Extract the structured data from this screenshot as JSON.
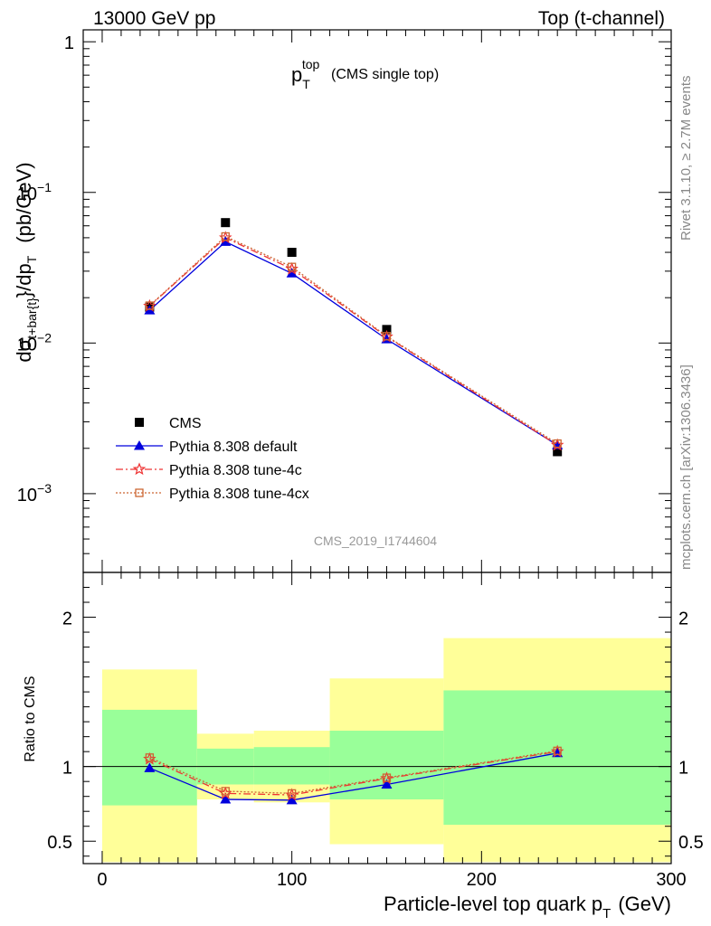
{
  "header": {
    "left": "13000 GeV pp",
    "right": "Top (t-channel)"
  },
  "title": {
    "main": "p",
    "main_sub": "T",
    "main_sup": "top",
    "note": "(CMS single top)"
  },
  "ylabel_top": {
    "prefix": "dσ",
    "sub": "t+bar{t}",
    "middle": "}/dp",
    "sub2": "T",
    "units": "(pb/GeV)"
  },
  "ylabel_bottom": "Ratio to CMS",
  "xlabel": {
    "main": "Particle-level top quark p",
    "sub": "T",
    "units": "(GeV)"
  },
  "side_text": {
    "rivet": "Rivet 3.1.10, ≥ 2.7M events",
    "mcplots": "mcplots.cern.ch [arXiv:1306.3436]"
  },
  "watermark": "CMS_2019_I1744604",
  "legend": [
    {
      "label": "CMS",
      "marker": "square",
      "color": "#000000"
    },
    {
      "label": "Pythia 8.308 default",
      "marker": "triangle",
      "color": "#0000dd"
    },
    {
      "label": "Pythia 8.308 tune-4c",
      "marker": "star",
      "color": "#ee3333"
    },
    {
      "label": "Pythia 8.308 tune-4cx",
      "marker": "open-square",
      "color": "#cc6633"
    }
  ],
  "chart_data": {
    "type": "scatter",
    "x_range": [
      -10,
      300
    ],
    "top_panel": {
      "y_scale": "log",
      "ylim": [
        0.0003,
        1.2
      ],
      "y_ticks": [
        {
          "v": 1,
          "base": "1",
          "exp": ""
        },
        {
          "v": 0.1,
          "base": "10",
          "exp": "−1"
        },
        {
          "v": 0.01,
          "base": "10",
          "exp": "−2"
        },
        {
          "v": 0.001,
          "base": "10",
          "exp": "−3"
        }
      ],
      "series": [
        {
          "name": "CMS",
          "x": [
            25,
            65,
            100,
            150,
            240
          ],
          "y": [
            0.0173,
            0.063,
            0.04,
            0.0123,
            0.0019
          ]
        },
        {
          "name": "Pythia 8.308 default",
          "x": [
            25,
            65,
            100,
            150,
            240
          ],
          "y": [
            0.0165,
            0.047,
            0.029,
            0.0106,
            0.0021
          ]
        },
        {
          "name": "Pythia 8.308 tune-4c",
          "x": [
            25,
            65,
            100,
            150,
            240
          ],
          "y": [
            0.0176,
            0.05,
            0.031,
            0.011,
            0.0021
          ]
        },
        {
          "name": "Pythia 8.308 tune-4cx",
          "x": [
            25,
            65,
            100,
            150,
            240
          ],
          "y": [
            0.0177,
            0.051,
            0.032,
            0.0111,
            0.00215
          ]
        }
      ]
    },
    "bottom_panel": {
      "ylim": [
        0.35,
        2.3
      ],
      "y_ticks": [
        0.5,
        1,
        2
      ],
      "bands": [
        {
          "x0": 0,
          "x1": 50,
          "inner": [
            0.74,
            1.38
          ],
          "outer": [
            0.36,
            1.65
          ]
        },
        {
          "x0": 50,
          "x1": 80,
          "inner": [
            0.88,
            1.12
          ],
          "outer": [
            0.78,
            1.22
          ]
        },
        {
          "x0": 80,
          "x1": 120,
          "inner": [
            0.88,
            1.13
          ],
          "outer": [
            0.76,
            1.24
          ]
        },
        {
          "x0": 120,
          "x1": 180,
          "inner": [
            0.78,
            1.24
          ],
          "outer": [
            0.48,
            1.59
          ]
        },
        {
          "x0": 180,
          "x1": 300,
          "inner": [
            0.61,
            1.51
          ],
          "outer": [
            0.36,
            1.86
          ]
        }
      ],
      "series": [
        {
          "name": "Pythia 8.308 default",
          "x": [
            25,
            65,
            100,
            150,
            240
          ],
          "y": [
            0.99,
            0.78,
            0.775,
            0.88,
            1.09
          ]
        },
        {
          "name": "Pythia 8.308 tune-4c",
          "x": [
            25,
            65,
            100,
            150,
            240
          ],
          "y": [
            1.05,
            0.82,
            0.81,
            0.92,
            1.1
          ]
        },
        {
          "name": "Pythia 8.308 tune-4cx",
          "x": [
            25,
            65,
            100,
            150,
            240
          ],
          "y": [
            1.06,
            0.835,
            0.82,
            0.925,
            1.105
          ]
        }
      ]
    },
    "x_ticks": [
      0,
      100,
      200,
      300
    ]
  }
}
